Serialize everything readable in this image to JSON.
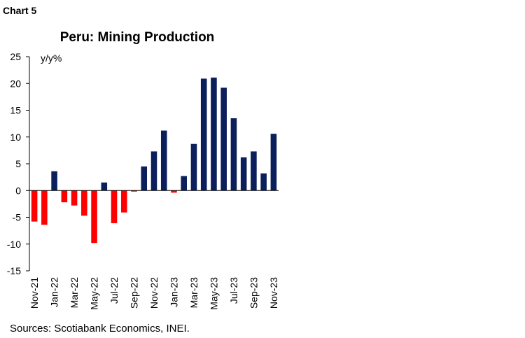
{
  "chart_label": "Chart 5",
  "chart_data": {
    "type": "bar",
    "title": "Peru: Mining Production",
    "y_unit_label": "y/y%",
    "categories": [
      "Nov-21",
      null,
      "Jan-22",
      null,
      "Mar-22",
      null,
      "May-22",
      null,
      "Jul-22",
      null,
      "Sep-22",
      null,
      "Nov-22",
      null,
      "Jan-23",
      null,
      "Mar-23",
      null,
      "May-23",
      null,
      "Jul-23",
      null,
      "Sep-23",
      null,
      "Nov-23"
    ],
    "values": [
      -5.8,
      -6.4,
      3.6,
      -2.2,
      -2.8,
      -4.7,
      -9.8,
      1.5,
      -6.1,
      -4.1,
      -0.2,
      4.5,
      7.3,
      11.2,
      -0.4,
      2.7,
      8.7,
      20.9,
      21.1,
      19.2,
      13.5,
      6.2,
      7.3,
      3.2,
      10.6
    ],
    "positive_color": "#0a1f5c",
    "negative_color": "#ff0000",
    "ylim": [
      -15,
      25
    ],
    "yticks": [
      -15,
      -10,
      -5,
      0,
      5,
      10,
      15,
      20,
      25
    ]
  },
  "source": "Sources: Scotiabank Economics, INEI."
}
